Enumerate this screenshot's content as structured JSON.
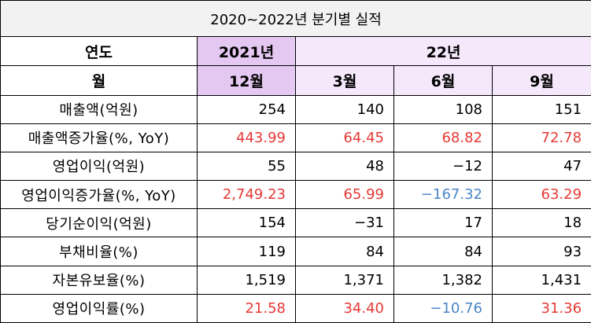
{
  "title": "2020~2022년 분기별 실적",
  "header": {
    "year_label": "연도",
    "year_2021": "2021년",
    "year_22": "22년",
    "month_label": "월",
    "months": [
      "12월",
      "3월",
      "6월",
      "9월"
    ]
  },
  "colors": {
    "header_dark": "#e4c8f2",
    "header_light": "#f5e8fb",
    "title_bg": "#f2f2f2",
    "positive_growth": "#e53935",
    "negative_growth": "#4a86c8"
  },
  "rows": [
    {
      "label": "매출액(억원)",
      "values": [
        "254",
        "140",
        "108",
        "151"
      ],
      "tones": [
        "",
        "",
        "",
        ""
      ]
    },
    {
      "label": "매출액증가율(%, YoY)",
      "values": [
        "443.99",
        "64.45",
        "68.82",
        "72.78"
      ],
      "tones": [
        "red",
        "red",
        "red",
        "red"
      ]
    },
    {
      "label": "영업이익(억원)",
      "values": [
        "55",
        "48",
        "−12",
        "47"
      ],
      "tones": [
        "",
        "",
        "",
        ""
      ]
    },
    {
      "label": "영업이익증가율(%, YoY)",
      "values": [
        "2,749.23",
        "65.99",
        "−167.32",
        "63.29"
      ],
      "tones": [
        "red",
        "red",
        "blue",
        "red"
      ]
    },
    {
      "label": "당기순이익(억원)",
      "values": [
        "154",
        "−31",
        "17",
        "18"
      ],
      "tones": [
        "",
        "",
        "",
        ""
      ]
    },
    {
      "label": "부채비율(%)",
      "values": [
        "119",
        "84",
        "84",
        "93"
      ],
      "tones": [
        "",
        "",
        "",
        ""
      ]
    },
    {
      "label": "자본유보율(%)",
      "values": [
        "1,519",
        "1,371",
        "1,382",
        "1,431"
      ],
      "tones": [
        "",
        "",
        "",
        ""
      ]
    },
    {
      "label": "영업이익률(%)",
      "values": [
        "21.58",
        "34.40",
        "−10.76",
        "31.36"
      ],
      "tones": [
        "red",
        "red",
        "blue",
        "red"
      ]
    }
  ]
}
